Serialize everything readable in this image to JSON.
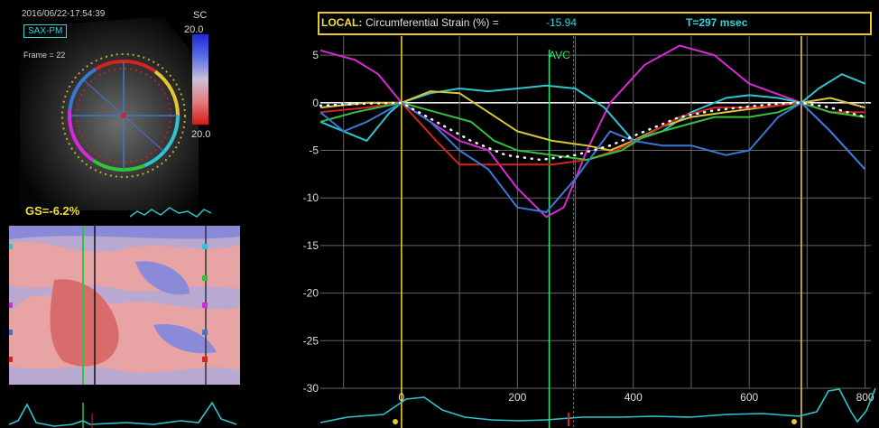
{
  "echo": {
    "timestamp": "2016/06/22-17:54:39",
    "view": "SAX-PM",
    "frame": "Frame = 22",
    "scale_unit": "SC",
    "scale_max": "20.0",
    "scale_min": "20.0",
    "global_strain": "GS=-6.2%"
  },
  "plot": {
    "header_local": "LOCAL:",
    "header_label": "Circumferential Strain (%) =",
    "header_value": "-15.94",
    "header_time": "T=297 msec",
    "event_label": "AVC",
    "y_ticks": [
      "5",
      "0",
      "-5",
      "-10",
      "-15",
      "-20",
      "-25",
      "-30"
    ],
    "x_ticks": [
      "0",
      "200",
      "400",
      "600",
      "800"
    ]
  },
  "colors": {
    "magenta": "#d829d8",
    "cyan": "#2ec5cf",
    "yellow": "#d9c43a",
    "red": "#d62222",
    "green": "#34c23a",
    "blue": "#3b78d6",
    "marker_yellow": "#e3c92f",
    "avc_green": "#2ee06a"
  },
  "chart_data": {
    "type": "line",
    "title": "Circumferential Strain (%) =-15.94",
    "xlabel": "",
    "ylabel": "",
    "xlim": [
      -140,
      810
    ],
    "ylim": [
      -30,
      7
    ],
    "x_ticks": [
      0,
      200,
      400,
      600,
      800
    ],
    "y_ticks": [
      5,
      0,
      -5,
      -10,
      -15,
      -20,
      -25,
      -30
    ],
    "markers": [
      {
        "name": "start",
        "x": 0
      },
      {
        "name": "end",
        "x": 690
      },
      {
        "name": "AVC",
        "x": 255
      },
      {
        "name": "T",
        "x": 297
      }
    ],
    "series": [
      {
        "color": "magenta",
        "x": [
          -140,
          -80,
          -40,
          0,
          50,
          100,
          150,
          200,
          250,
          280,
          320,
          360,
          420,
          480,
          540,
          600,
          690,
          740,
          800
        ],
        "y": [
          5.5,
          4.5,
          3,
          0,
          -2,
          -4,
          -5,
          -9,
          -12,
          -11,
          -5,
          0,
          4,
          6,
          5,
          2,
          0,
          -3,
          -7
        ]
      },
      {
        "color": "cyan",
        "x": [
          -140,
          -100,
          -60,
          -20,
          0,
          50,
          100,
          150,
          200,
          250,
          300,
          350,
          400,
          450,
          500,
          560,
          600,
          650,
          690,
          720,
          760,
          800
        ],
        "y": [
          -2,
          -3,
          -4,
          -1,
          0,
          1,
          1.5,
          1.2,
          1.5,
          1.8,
          1.5,
          -0.5,
          -4,
          -3,
          -1,
          0.5,
          0.8,
          0.5,
          0,
          1.5,
          3,
          2
        ]
      },
      {
        "color": "yellow",
        "x": [
          -140,
          -60,
          0,
          50,
          100,
          150,
          200,
          260,
          320,
          360,
          400,
          450,
          500,
          560,
          620,
          690,
          740,
          800
        ],
        "y": [
          -0.5,
          0,
          0,
          1.2,
          1,
          -1,
          -3,
          -4,
          -4.5,
          -5,
          -4,
          -2.5,
          -1.5,
          -1,
          -0.5,
          0,
          0.5,
          -0.5
        ]
      },
      {
        "color": "red",
        "x": [
          -140,
          -60,
          0,
          60,
          100,
          150,
          200,
          260,
          320,
          370,
          420,
          480,
          540,
          600,
          650,
          690,
          740,
          800
        ],
        "y": [
          -1,
          -0.5,
          0,
          -4,
          -6.5,
          -6.5,
          -6.5,
          -6.5,
          -6,
          -5,
          -3.5,
          -1.5,
          -0.5,
          -0.5,
          -0.3,
          0,
          -1,
          -1
        ]
      },
      {
        "color": "green",
        "x": [
          -140,
          -80,
          0,
          60,
          120,
          160,
          200,
          260,
          320,
          380,
          420,
          480,
          540,
          600,
          650,
          690,
          740,
          800
        ],
        "y": [
          -2,
          -1,
          0,
          -1,
          -2,
          -4,
          -5,
          -5.5,
          -6,
          -5,
          -3.5,
          -2.5,
          -1.5,
          -1.5,
          -1,
          0,
          -1,
          -1.5
        ]
      },
      {
        "color": "blue",
        "x": [
          -140,
          -100,
          -60,
          0,
          50,
          100,
          150,
          200,
          250,
          300,
          360,
          400,
          450,
          500,
          560,
          600,
          650,
          690,
          740,
          800
        ],
        "y": [
          -1,
          -3,
          -2,
          0,
          -2,
          -5,
          -7,
          -11,
          -11.5,
          -8,
          -3,
          -4,
          -4.5,
          -4.5,
          -5.5,
          -5,
          -1.5,
          0,
          -3,
          -7
        ]
      },
      {
        "color": "white",
        "dotted": true,
        "x": [
          -140,
          -60,
          0,
          60,
          120,
          180,
          240,
          300,
          360,
          420,
          480,
          540,
          600,
          650,
          690,
          740,
          800
        ],
        "y": [
          -0.3,
          -0.1,
          0,
          -2,
          -4,
          -5.5,
          -6,
          -5.5,
          -4.5,
          -3,
          -1.5,
          -0.8,
          -0.4,
          -0.1,
          0,
          -0.5,
          -1.5
        ]
      }
    ]
  }
}
